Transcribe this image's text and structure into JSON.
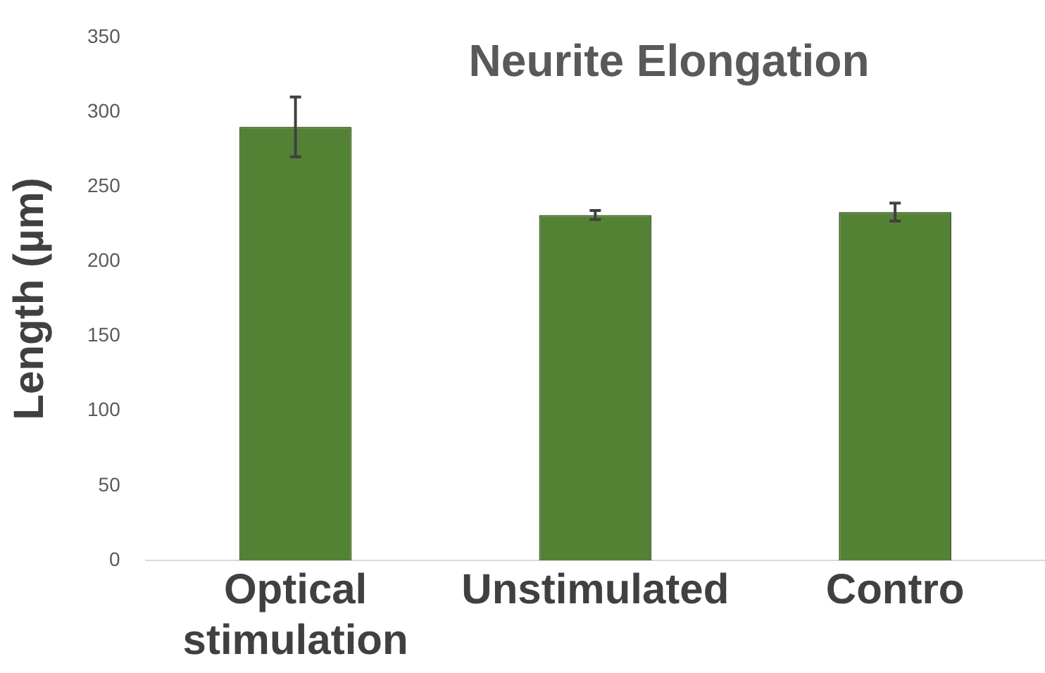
{
  "chart_data": {
    "type": "bar",
    "title": "Neurite Elongation",
    "ylabel": "Length (µm)",
    "categories": [
      "Optical stimulation",
      "Unstimulated",
      "Contro"
    ],
    "values": [
      290,
      231,
      233
    ],
    "errors": [
      20,
      3,
      6
    ],
    "color": "#548235",
    "ylim": [
      0,
      350
    ],
    "yticks": [
      0,
      50,
      100,
      150,
      200,
      250,
      300,
      350
    ],
    "grid": false,
    "legend": false
  }
}
